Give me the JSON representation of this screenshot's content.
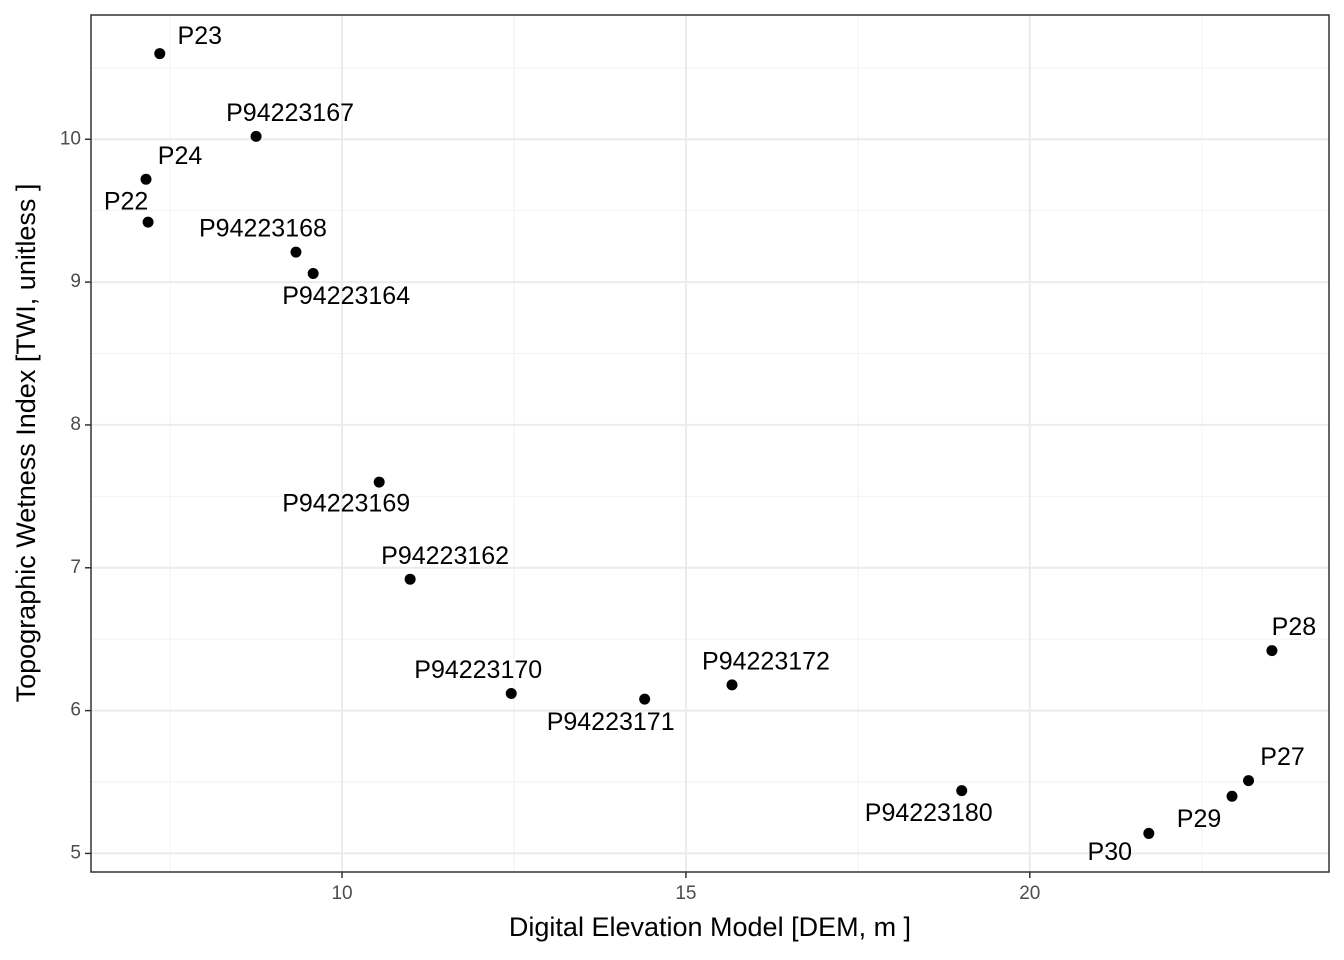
{
  "chart_data": {
    "type": "scatter",
    "x_label": "Digital Elevation Model [DEM, m ]",
    "y_label": "Topographic Wetness Index [TWI, unitless ]",
    "labels": [
      "P23",
      "P94223167",
      "P24",
      "P22",
      "P94223168",
      "P94223164",
      "P94223169",
      "P94223162",
      "P94223170",
      "P94223171",
      "P94223172",
      "P94223180",
      "P30",
      "P29",
      "P27",
      "P28"
    ],
    "x": [
      7.35,
      8.75,
      7.15,
      7.18,
      9.33,
      9.58,
      10.54,
      10.99,
      12.46,
      14.4,
      15.67,
      19.01,
      21.73,
      22.94,
      23.18,
      23.52
    ],
    "values": [
      10.6,
      10.02,
      9.72,
      9.42,
      9.21,
      9.06,
      7.6,
      6.92,
      6.12,
      6.08,
      6.18,
      5.44,
      5.14,
      5.4,
      5.51,
      6.42
    ],
    "color": "#000000",
    "xlim": [
      6.35,
      24.35
    ],
    "ylim": [
      4.87,
      10.87
    ],
    "xticks": [
      10,
      15,
      20
    ],
    "yticks": [
      5,
      6,
      7,
      8,
      9,
      10
    ],
    "xminorticks": [
      7.5,
      12.5,
      17.5,
      22.5
    ],
    "yminorticks": [
      5.5,
      6.5,
      7.5,
      8.5,
      9.5,
      10.5
    ],
    "grid": true
  }
}
